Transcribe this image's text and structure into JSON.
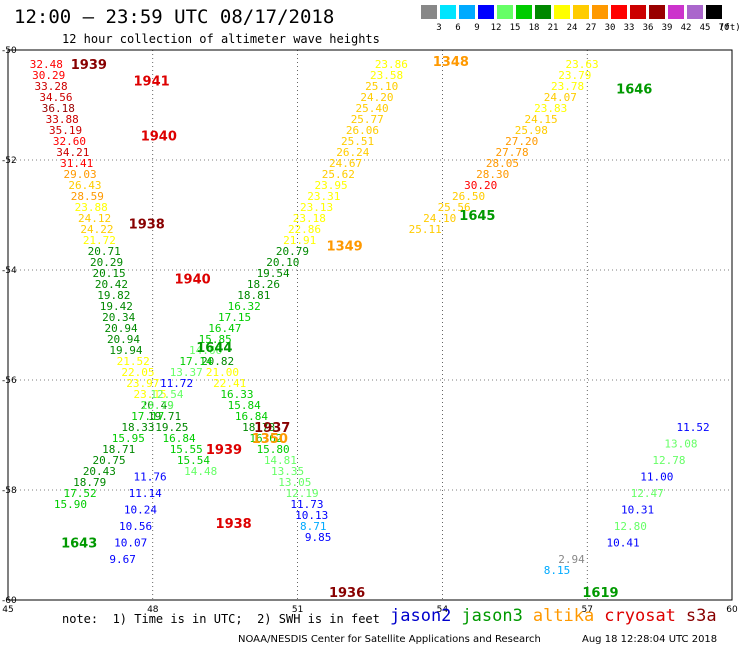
{
  "header": {
    "title": "12:00 — 23:59 UTC 08/17/2018",
    "subtitle": "12 hour collection of altimeter wave heights"
  },
  "legend": {
    "unit": "(ft)",
    "bins": [
      {
        "label": "3",
        "color": "#888888"
      },
      {
        "label": "6",
        "color": "#00e5ff"
      },
      {
        "label": "9",
        "color": "#00aaff"
      },
      {
        "label": "12",
        "color": "#0000ff"
      },
      {
        "label": "15",
        "color": "#66ff66"
      },
      {
        "label": "18",
        "color": "#00cc00"
      },
      {
        "label": "21",
        "color": "#008800"
      },
      {
        "label": "24",
        "color": "#ffff00"
      },
      {
        "label": "27",
        "color": "#ffcc00"
      },
      {
        "label": "30",
        "color": "#ff9900"
      },
      {
        "label": "33",
        "color": "#ff0000"
      },
      {
        "label": "36",
        "color": "#cc0000"
      },
      {
        "label": "39",
        "color": "#990000"
      },
      {
        "label": "42",
        "color": "#cc33cc"
      },
      {
        "label": "45",
        "color": "#aa66cc"
      },
      {
        "label": "70",
        "color": "#000000"
      }
    ]
  },
  "axes": {
    "lon_ticks": [
      "45",
      "48",
      "51",
      "54",
      "57",
      "60"
    ],
    "lat_ticks": [
      "-50",
      "-52",
      "-54",
      "-56",
      "-58",
      "-60"
    ]
  },
  "colors": {
    "jason2": "#0000cc",
    "jason3": "#009900",
    "altika": "#ff9900",
    "cryosat": "#dd0000",
    "s3a": "#880000"
  },
  "footer": {
    "note": "note:  1) Time is in UTC;  2) SWH is in feet",
    "credit": "NOAA/NESDIS Center for Satellite Applications and Research",
    "created": "Aug 18 12:28:04 UTC 2018",
    "satellites": [
      {
        "name": "jason2",
        "color": "#0000cc"
      },
      {
        "name": "jason3",
        "color": "#009900"
      },
      {
        "name": "altika",
        "color": "#ff9900"
      },
      {
        "name": "cryosat",
        "color": "#dd0000"
      },
      {
        "name": "s3a",
        "color": "#880000"
      }
    ]
  },
  "observations": [
    {
      "lon": 45.45,
      "lat": -50.25,
      "swh": 32.48
    },
    {
      "lon": 45.5,
      "lat": -50.45,
      "swh": 30.29
    },
    {
      "lon": 45.55,
      "lat": -50.65,
      "swh": 33.28
    },
    {
      "lon": 45.65,
      "lat": -50.85,
      "swh": 34.56
    },
    {
      "lon": 45.7,
      "lat": -51.05,
      "swh": 36.18
    },
    {
      "lon": 45.78,
      "lat": -51.25,
      "swh": 33.88
    },
    {
      "lon": 45.85,
      "lat": -51.45,
      "swh": 35.19
    },
    {
      "lon": 45.93,
      "lat": -51.65,
      "swh": 32.6
    },
    {
      "lon": 46.0,
      "lat": -51.85,
      "swh": 34.21
    },
    {
      "lon": 46.08,
      "lat": -52.05,
      "swh": 31.41
    },
    {
      "lon": 46.15,
      "lat": -52.25,
      "swh": 29.03
    },
    {
      "lon": 46.25,
      "lat": -52.45,
      "swh": 26.43
    },
    {
      "lon": 46.3,
      "lat": -52.65,
      "swh": 28.59
    },
    {
      "lon": 46.38,
      "lat": -52.85,
      "swh": 23.88
    },
    {
      "lon": 46.45,
      "lat": -53.05,
      "swh": 24.12
    },
    {
      "lon": 46.5,
      "lat": -53.25,
      "swh": 24.22
    },
    {
      "lon": 46.55,
      "lat": -53.45,
      "swh": 21.72
    },
    {
      "lon": 46.65,
      "lat": -53.65,
      "swh": 20.71
    },
    {
      "lon": 46.7,
      "lat": -53.85,
      "swh": 20.29
    },
    {
      "lon": 46.75,
      "lat": -54.05,
      "swh": 20.15
    },
    {
      "lon": 46.8,
      "lat": -54.25,
      "swh": 20.42
    },
    {
      "lon": 46.85,
      "lat": -54.45,
      "swh": 19.82
    },
    {
      "lon": 46.9,
      "lat": -54.65,
      "swh": 19.42
    },
    {
      "lon": 46.95,
      "lat": -54.85,
      "swh": 20.34
    },
    {
      "lon": 47.0,
      "lat": -55.05,
      "swh": 20.94
    },
    {
      "lon": 47.05,
      "lat": -55.25,
      "swh": 20.94
    },
    {
      "lon": 47.1,
      "lat": -55.45,
      "swh": 19.94
    },
    {
      "lon": 47.25,
      "lat": -55.65,
      "swh": 21.52
    },
    {
      "lon": 47.35,
      "lat": -55.85,
      "swh": 22.05
    },
    {
      "lon": 47.45,
      "lat": -56.05,
      "swh": 23.97
    },
    {
      "lon": 47.6,
      "lat": -56.25,
      "swh": 23.15
    },
    {
      "lon": 47.75,
      "lat": -56.45,
      "swh": 20.49
    },
    {
      "lon": 47.9,
      "lat": -56.65,
      "swh": 19.71
    },
    {
      "lon": 48.05,
      "lat": -56.85,
      "swh": 19.25
    },
    {
      "lon": 48.2,
      "lat": -57.05,
      "swh": 16.84
    },
    {
      "lon": 48.35,
      "lat": -57.25,
      "swh": 15.55
    },
    {
      "lon": 48.5,
      "lat": -57.45,
      "swh": 15.54
    },
    {
      "lon": 48.65,
      "lat": -57.65,
      "swh": 14.48
    },
    {
      "lon": 47.6,
      "lat": -57.75,
      "swh": 11.76
    },
    {
      "lon": 47.5,
      "lat": -58.05,
      "swh": 11.14
    },
    {
      "lon": 47.4,
      "lat": -58.35,
      "swh": 10.24
    },
    {
      "lon": 47.3,
      "lat": -58.65,
      "swh": 10.56
    },
    {
      "lon": 47.2,
      "lat": -58.95,
      "swh": 10.07
    },
    {
      "lon": 47.1,
      "lat": -59.25,
      "swh": 9.67
    },
    {
      "lon": 49.0,
      "lat": -55.65,
      "swh": 20.82
    },
    {
      "lon": 49.1,
      "lat": -55.85,
      "swh": 21.0
    },
    {
      "lon": 49.25,
      "lat": -56.05,
      "swh": 22.41
    },
    {
      "lon": 49.4,
      "lat": -56.25,
      "swh": 16.33
    },
    {
      "lon": 49.55,
      "lat": -56.45,
      "swh": 15.84
    },
    {
      "lon": 49.7,
      "lat": -56.65,
      "swh": 16.84
    },
    {
      "lon": 49.85,
      "lat": -56.85,
      "swh": 18.73
    },
    {
      "lon": 50.0,
      "lat": -57.05,
      "swh": 16.62
    },
    {
      "lon": 50.15,
      "lat": -57.25,
      "swh": 15.8
    },
    {
      "lon": 50.3,
      "lat": -57.45,
      "swh": 14.81
    },
    {
      "lon": 50.45,
      "lat": -57.65,
      "swh": 13.35
    },
    {
      "lon": 50.6,
      "lat": -57.85,
      "swh": 13.05
    },
    {
      "lon": 50.75,
      "lat": -58.05,
      "swh": 12.19
    },
    {
      "lon": 50.85,
      "lat": -58.25,
      "swh": 11.73
    },
    {
      "lon": 50.95,
      "lat": -58.45,
      "swh": 10.13
    },
    {
      "lon": 51.05,
      "lat": -58.65,
      "swh": 8.71
    },
    {
      "lon": 51.15,
      "lat": -58.85,
      "swh": 9.85
    },
    {
      "lon": 50.55,
      "lat": -53.65,
      "swh": 20.79
    },
    {
      "lon": 50.35,
      "lat": -53.85,
      "swh": 20.1
    },
    {
      "lon": 50.15,
      "lat": -54.05,
      "swh": 19.54
    },
    {
      "lon": 49.95,
      "lat": -54.25,
      "swh": 18.26
    },
    {
      "lon": 49.75,
      "lat": -54.45,
      "swh": 18.81
    },
    {
      "lon": 49.55,
      "lat": -54.65,
      "swh": 16.32
    },
    {
      "lon": 49.35,
      "lat": -54.85,
      "swh": 17.15
    },
    {
      "lon": 49.15,
      "lat": -55.05,
      "swh": 16.47
    },
    {
      "lon": 48.95,
      "lat": -55.25,
      "swh": 15.85
    },
    {
      "lon": 48.75,
      "lat": -55.45,
      "swh": 14.66
    },
    {
      "lon": 48.55,
      "lat": -55.65,
      "swh": 17.14
    },
    {
      "lon": 48.35,
      "lat": -55.85,
      "swh": 13.37
    },
    {
      "lon": 48.15,
      "lat": -56.05,
      "swh": 11.72
    },
    {
      "lon": 47.95,
      "lat": -56.25,
      "swh": 12.54
    },
    {
      "lon": 47.75,
      "lat": -56.45,
      "swh": 13.79
    },
    {
      "lon": 47.55,
      "lat": -56.65,
      "swh": 17.17
    },
    {
      "lon": 47.35,
      "lat": -56.85,
      "swh": 18.33
    },
    {
      "lon": 47.15,
      "lat": -57.05,
      "swh": 15.95
    },
    {
      "lon": 46.95,
      "lat": -57.25,
      "swh": 18.71
    },
    {
      "lon": 46.75,
      "lat": -57.45,
      "swh": 20.75
    },
    {
      "lon": 46.55,
      "lat": -57.65,
      "swh": 20.43
    },
    {
      "lon": 46.35,
      "lat": -57.85,
      "swh": 18.79
    },
    {
      "lon": 46.15,
      "lat": -58.05,
      "swh": 17.52
    },
    {
      "lon": 45.95,
      "lat": -58.25,
      "swh": 15.9
    },
    {
      "lon": 52.6,
      "lat": -50.25,
      "swh": 23.86
    },
    {
      "lon": 52.5,
      "lat": -50.45,
      "swh": 23.58
    },
    {
      "lon": 52.4,
      "lat": -50.65,
      "swh": 25.1
    },
    {
      "lon": 52.3,
      "lat": -50.85,
      "swh": 24.2
    },
    {
      "lon": 52.2,
      "lat": -51.05,
      "swh": 25.4
    },
    {
      "lon": 52.1,
      "lat": -51.25,
      "swh": 25.77
    },
    {
      "lon": 52.0,
      "lat": -51.45,
      "swh": 26.06
    },
    {
      "lon": 51.9,
      "lat": -51.65,
      "swh": 25.51
    },
    {
      "lon": 51.8,
      "lat": -51.85,
      "swh": 26.24
    },
    {
      "lon": 51.65,
      "lat": -52.05,
      "swh": 24.67
    },
    {
      "lon": 51.5,
      "lat": -52.25,
      "swh": 25.62
    },
    {
      "lon": 51.35,
      "lat": -52.45,
      "swh": 23.95
    },
    {
      "lon": 51.2,
      "lat": -52.65,
      "swh": 23.31
    },
    {
      "lon": 51.05,
      "lat": -52.85,
      "swh": 23.13
    },
    {
      "lon": 50.9,
      "lat": -53.05,
      "swh": 23.18
    },
    {
      "lon": 50.8,
      "lat": -53.25,
      "swh": 22.86
    },
    {
      "lon": 50.7,
      "lat": -53.45,
      "swh": 21.91
    },
    {
      "lon": 56.55,
      "lat": -50.25,
      "swh": 23.63
    },
    {
      "lon": 56.4,
      "lat": -50.45,
      "swh": 23.79
    },
    {
      "lon": 56.25,
      "lat": -50.65,
      "swh": 23.78
    },
    {
      "lon": 56.1,
      "lat": -50.85,
      "swh": 24.07
    },
    {
      "lon": 55.9,
      "lat": -51.05,
      "swh": 23.83
    },
    {
      "lon": 55.7,
      "lat": -51.25,
      "swh": 24.15
    },
    {
      "lon": 55.5,
      "lat": -51.45,
      "swh": 25.98
    },
    {
      "lon": 55.3,
      "lat": -51.65,
      "swh": 27.2
    },
    {
      "lon": 55.1,
      "lat": -51.85,
      "swh": 27.78
    },
    {
      "lon": 54.9,
      "lat": -52.05,
      "swh": 28.05
    },
    {
      "lon": 54.7,
      "lat": -52.25,
      "swh": 28.3
    },
    {
      "lon": 54.45,
      "lat": -52.45,
      "swh": 30.2
    },
    {
      "lon": 54.2,
      "lat": -52.65,
      "swh": 26.5
    },
    {
      "lon": 53.9,
      "lat": -52.85,
      "swh": 25.56
    },
    {
      "lon": 53.6,
      "lat": -53.05,
      "swh": 24.1
    },
    {
      "lon": 53.3,
      "lat": -53.25,
      "swh": 25.11
    },
    {
      "lon": 57.4,
      "lat": -58.95,
      "swh": 10.41
    },
    {
      "lon": 57.55,
      "lat": -58.65,
      "swh": 12.8
    },
    {
      "lon": 57.7,
      "lat": -58.35,
      "swh": 10.31
    },
    {
      "lon": 57.9,
      "lat": -58.05,
      "swh": 12.47
    },
    {
      "lon": 58.1,
      "lat": -57.75,
      "swh": 11.0
    },
    {
      "lon": 58.35,
      "lat": -57.45,
      "swh": 12.78
    },
    {
      "lon": 58.6,
      "lat": -57.15,
      "swh": 13.08
    },
    {
      "lon": 58.85,
      "lat": -56.85,
      "swh": 11.52
    },
    {
      "lon": 56.4,
      "lat": -59.25,
      "swh": 2.94
    },
    {
      "lon": 56.1,
      "lat": -59.45,
      "swh": 8.15
    }
  ],
  "pass_times": [
    {
      "lon": 46.3,
      "lat": -50.25,
      "time": "1939",
      "color": "#880000"
    },
    {
      "lon": 47.6,
      "lat": -50.55,
      "time": "1941",
      "color": "#dd0000"
    },
    {
      "lon": 47.75,
      "lat": -51.55,
      "time": "1940",
      "color": "#dd0000"
    },
    {
      "lon": 47.5,
      "lat": -53.15,
      "time": "1938",
      "color": "#880000"
    },
    {
      "lon": 48.45,
      "lat": -54.15,
      "time": "1940",
      "color": "#dd0000"
    },
    {
      "lon": 48.9,
      "lat": -55.4,
      "time": "1644",
      "color": "#009900"
    },
    {
      "lon": 49.1,
      "lat": -57.25,
      "time": "1939",
      "color": "#dd0000"
    },
    {
      "lon": 50.1,
      "lat": -56.85,
      "time": "1937",
      "color": "#880000"
    },
    {
      "lon": 50.05,
      "lat": -57.05,
      "time": "1350",
      "color": "#ff9900"
    },
    {
      "lon": 49.3,
      "lat": -58.6,
      "time": "1938",
      "color": "#dd0000"
    },
    {
      "lon": 46.1,
      "lat": -58.95,
      "time": "1643",
      "color": "#009900"
    },
    {
      "lon": 53.8,
      "lat": -50.2,
      "time": "1348",
      "color": "#ff9900"
    },
    {
      "lon": 57.6,
      "lat": -50.7,
      "time": "1646",
      "color": "#009900"
    },
    {
      "lon": 54.35,
      "lat": -53.0,
      "time": "1645",
      "color": "#009900"
    },
    {
      "lon": 51.6,
      "lat": -53.55,
      "time": "1349",
      "color": "#ff9900"
    },
    {
      "lon": 51.65,
      "lat": -59.85,
      "time": "1936",
      "color": "#880000"
    },
    {
      "lon": 56.9,
      "lat": -59.85,
      "time": "1619",
      "color": "#009900"
    }
  ]
}
